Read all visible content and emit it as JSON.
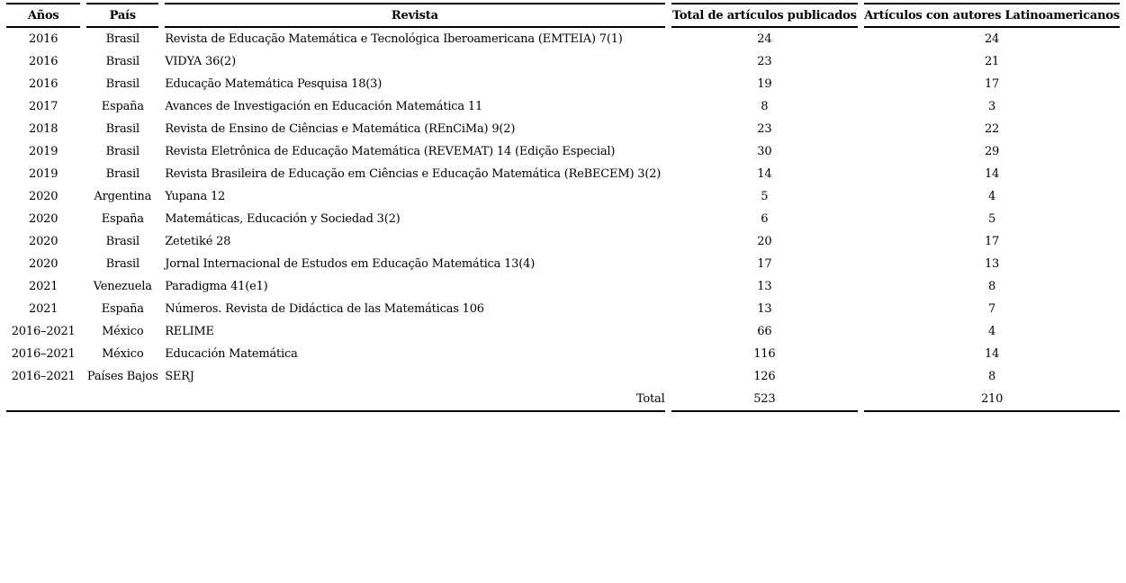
{
  "table": {
    "headers": [
      "Años",
      "País",
      "Revista",
      "Total de artículos publicados",
      "Artículos con autores Latinoamericanos"
    ],
    "rows": [
      {
        "years": "2016",
        "country": "Brasil",
        "journal": "Revista de Educação Matemática e Tecnológica Iberoamericana (EMTEIA) 7(1)",
        "total": "24",
        "latam": "24"
      },
      {
        "years": "2016",
        "country": "Brasil",
        "journal": "VIDYA 36(2)",
        "total": "23",
        "latam": "21"
      },
      {
        "years": "2016",
        "country": "Brasil",
        "journal": "Educação Matemática Pesquisa 18(3)",
        "total": "19",
        "latam": "17"
      },
      {
        "years": "2017",
        "country": "España",
        "journal": "Avances de Investigación en Educación Matemática 11",
        "total": "8",
        "latam": "3"
      },
      {
        "years": "2018",
        "country": "Brasil",
        "journal": "Revista de Ensino de Ciências e Matemática (REnCiMa) 9(2)",
        "total": "23",
        "latam": "22"
      },
      {
        "years": "2019",
        "country": "Brasil",
        "journal": "Revista Eletrônica de Educação Matemática (REVEMAT) 14 (Edição Especial)",
        "total": "30",
        "latam": "29"
      },
      {
        "years": "2019",
        "country": "Brasil",
        "journal": "Revista Brasileira de Educação em Ciências e Educação Matemática (ReBECEM) 3(2)",
        "total": "14",
        "latam": "14"
      },
      {
        "years": "2020",
        "country": "Argentina",
        "journal": "Yupana 12",
        "total": "5",
        "latam": "4"
      },
      {
        "years": "2020",
        "country": "España",
        "journal": "Matemáticas, Educación y Sociedad 3(2)",
        "total": "6",
        "latam": "5"
      },
      {
        "years": "2020",
        "country": "Brasil",
        "journal": "Zetetiké 28",
        "total": "20",
        "latam": "17"
      },
      {
        "years": "2020",
        "country": "Brasil",
        "journal": "Jornal Internacional de Estudos em Educação Matemática 13(4)",
        "total": "17",
        "latam": "13"
      },
      {
        "years": "2021",
        "country": "Venezuela",
        "journal": "Paradigma 41(e1)",
        "total": "13",
        "latam": "8"
      },
      {
        "years": "2021",
        "country": "España",
        "journal": "Números. Revista de Didáctica de las Matemáticas 106",
        "total": "13",
        "latam": "7"
      },
      {
        "years": "2016–2021",
        "country": "México",
        "journal": "RELIME",
        "total": "66",
        "latam": "4"
      },
      {
        "years": "2016–2021",
        "country": "México",
        "journal": "Educación Matemática",
        "total": "116",
        "latam": "14"
      },
      {
        "years": "2016–2021",
        "country": "Países Bajos",
        "journal": "SERJ",
        "total": "126",
        "latam": "8"
      }
    ],
    "total_row": {
      "label": "Total",
      "total": "523",
      "latam": "210"
    }
  },
  "colors": {
    "text": "#000000",
    "background": "#ffffff",
    "rule": "#000000"
  }
}
